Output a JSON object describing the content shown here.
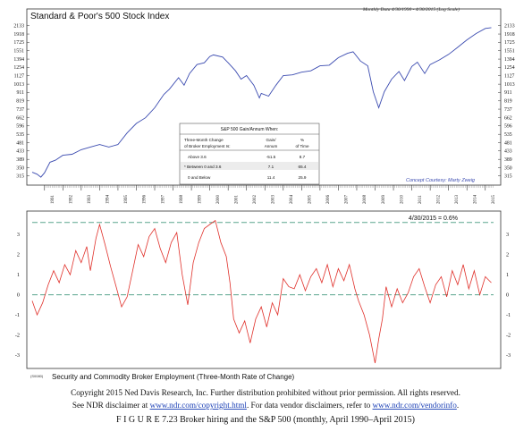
{
  "chart_data": [
    {
      "type": "line",
      "title": "Standard & Poor's 500 Stock Index",
      "date_range_note": "Monthly Data 4/30/1990 - 4/30/2015 (Log Scale)",
      "scale": "log",
      "ylim": [
        300,
        2200
      ],
      "y_ticks": [
        2133,
        1918,
        1725,
        1551,
        1394,
        1254,
        1127,
        1013,
        911,
        819,
        737,
        662,
        596,
        535,
        481,
        433,
        389,
        350,
        315
      ],
      "x_ticks": [
        "1991",
        "1992",
        "1993",
        "1994",
        "1995",
        "1996",
        "1997",
        "1998",
        "1999",
        "2000",
        "2001",
        "2002",
        "2003",
        "2004",
        "2005",
        "2006",
        "2007",
        "2008",
        "2009",
        "2010",
        "2011",
        "2012",
        "2013",
        "2014",
        "2015"
      ],
      "color": "#3b4bb0",
      "x": [
        1990.33,
        1990.6,
        1990.8,
        1991.0,
        1991.3,
        1991.6,
        1992.0,
        1992.5,
        1993.0,
        1993.5,
        1994.0,
        1994.5,
        1995.0,
        1995.5,
        1996.0,
        1996.5,
        1997.0,
        1997.5,
        1997.8,
        1998.3,
        1998.6,
        1998.9,
        1999.3,
        1999.7,
        2000.0,
        2000.2,
        2000.7,
        2001.0,
        2001.4,
        2001.7,
        2002.0,
        2002.4,
        2002.7,
        2002.8,
        2003.2,
        2003.6,
        2004.0,
        2004.5,
        2005.0,
        2005.5,
        2006.0,
        2006.5,
        2007.0,
        2007.5,
        2007.8,
        2008.2,
        2008.6,
        2008.9,
        2009.2,
        2009.5,
        2009.9,
        2010.3,
        2010.6,
        2011.0,
        2011.3,
        2011.7,
        2012.0,
        2012.5,
        2013.0,
        2013.5,
        2014.0,
        2014.5,
        2015.0,
        2015.33
      ],
      "values": [
        330,
        322,
        310,
        328,
        375,
        385,
        410,
        415,
        440,
        455,
        470,
        455,
        470,
        545,
        615,
        660,
        750,
        890,
        950,
        1100,
        1000,
        1160,
        1300,
        1330,
        1440,
        1470,
        1430,
        1330,
        1200,
        1080,
        1130,
        1000,
        850,
        900,
        870,
        1000,
        1130,
        1140,
        1180,
        1200,
        1280,
        1290,
        1420,
        1500,
        1530,
        1360,
        1280,
        920,
        750,
        920,
        1080,
        1190,
        1060,
        1270,
        1340,
        1160,
        1300,
        1380,
        1480,
        1620,
        1780,
        1930,
        2060,
        2080
      ],
      "table": {
        "header": "S&P 500 Gain/Annum When:",
        "col1": [
          "Three-Month Change",
          "of Broker Employment Is:"
        ],
        "col2": [
          "Gain/",
          "Annum"
        ],
        "col3": [
          "%",
          "of Time"
        ],
        "rows": [
          {
            "cond": "Above 3.6",
            "gain": "-51.5",
            "pct": "8.7"
          },
          {
            "cond": "* Between 0 and 3.6",
            "gain": "7.1",
            "pct": "65.4"
          },
          {
            "cond": "0 and Below",
            "gain": "11.4",
            "pct": "25.9"
          }
        ]
      },
      "annotation": "Concept Courtesy: Marty Zweig"
    },
    {
      "type": "line",
      "title": "Security and Commodity Broker Employment (Three-Month Rate of Change)",
      "ylim": [
        -3.4,
        3.9
      ],
      "y_ticks": [
        3,
        2,
        1,
        0,
        -1,
        -2,
        -3
      ],
      "reference_lines": [
        3.6,
        0
      ],
      "reference_color": "#5aa58e",
      "color": "#e0302a",
      "latest_label": "4/30/2015 = 0.6%",
      "id_label": "(S0080)",
      "x": [
        1990.33,
        1990.6,
        1990.9,
        1991.2,
        1991.5,
        1991.8,
        1992.1,
        1992.4,
        1992.7,
        1993.0,
        1993.3,
        1993.5,
        1993.8,
        1994.0,
        1994.3,
        1994.6,
        1994.9,
        1995.2,
        1995.5,
        1995.8,
        1996.1,
        1996.4,
        1996.7,
        1997.0,
        1997.3,
        1997.6,
        1997.9,
        1998.2,
        1998.5,
        1998.8,
        1999.1,
        1999.4,
        1999.7,
        2000.0,
        2000.3,
        2000.6,
        2000.9,
        2001.1,
        2001.3,
        2001.6,
        2001.9,
        2002.2,
        2002.5,
        2002.8,
        2003.1,
        2003.4,
        2003.7,
        2004.0,
        2004.3,
        2004.6,
        2004.9,
        2005.2,
        2005.5,
        2005.8,
        2006.1,
        2006.4,
        2006.7,
        2007.0,
        2007.3,
        2007.6,
        2007.9,
        2008.1,
        2008.4,
        2008.7,
        2009.0,
        2009.2,
        2009.4,
        2009.6,
        2009.9,
        2010.2,
        2010.5,
        2010.8,
        2011.1,
        2011.4,
        2011.7,
        2012.0,
        2012.3,
        2012.6,
        2012.9,
        2013.2,
        2013.5,
        2013.8,
        2014.1,
        2014.4,
        2014.7,
        2015.0,
        2015.33
      ],
      "values": [
        -0.3,
        -1.0,
        -0.4,
        0.5,
        1.2,
        0.6,
        1.5,
        1.0,
        2.2,
        1.6,
        2.4,
        1.2,
        2.8,
        3.5,
        2.5,
        1.4,
        0.4,
        -0.6,
        -0.1,
        1.2,
        2.5,
        1.9,
        2.9,
        3.3,
        2.3,
        1.6,
        2.6,
        3.1,
        1.0,
        -0.5,
        1.6,
        2.6,
        3.3,
        3.5,
        3.7,
        2.6,
        1.9,
        0.6,
        -1.2,
        -1.9,
        -1.3,
        -2.4,
        -1.2,
        -0.6,
        -1.6,
        -0.4,
        -1.0,
        0.8,
        0.4,
        0.3,
        1.0,
        0.2,
        0.9,
        1.3,
        0.6,
        1.5,
        0.4,
        1.3,
        0.7,
        1.5,
        0.3,
        -0.3,
        -1.0,
        -2.0,
        -3.4,
        -2.2,
        -1.2,
        0.4,
        -0.6,
        0.3,
        -0.4,
        0.1,
        0.9,
        1.3,
        0.4,
        -0.4,
        0.5,
        0.9,
        -0.1,
        1.2,
        0.5,
        1.5,
        0.3,
        1.2,
        0.0,
        0.9,
        0.6
      ]
    }
  ],
  "footer": {
    "copyright": "Copyright 2015 Ned Davis Research, Inc. Further distribution prohibited without prior permission. All rights reserved.",
    "disclaimer_pre": "See NDR disclaimer at ",
    "link1": "www.ndr.com/copyright.html",
    "disclaimer_mid": ". For data vendor disclaimers, refer to ",
    "link2": "www.ndr.com/vendorinfo",
    "disclaimer_end": ".",
    "caption": "F I G U R E  7.23 Broker hiring and the S&P 500 (monthly, April 1990–April 2015)"
  }
}
